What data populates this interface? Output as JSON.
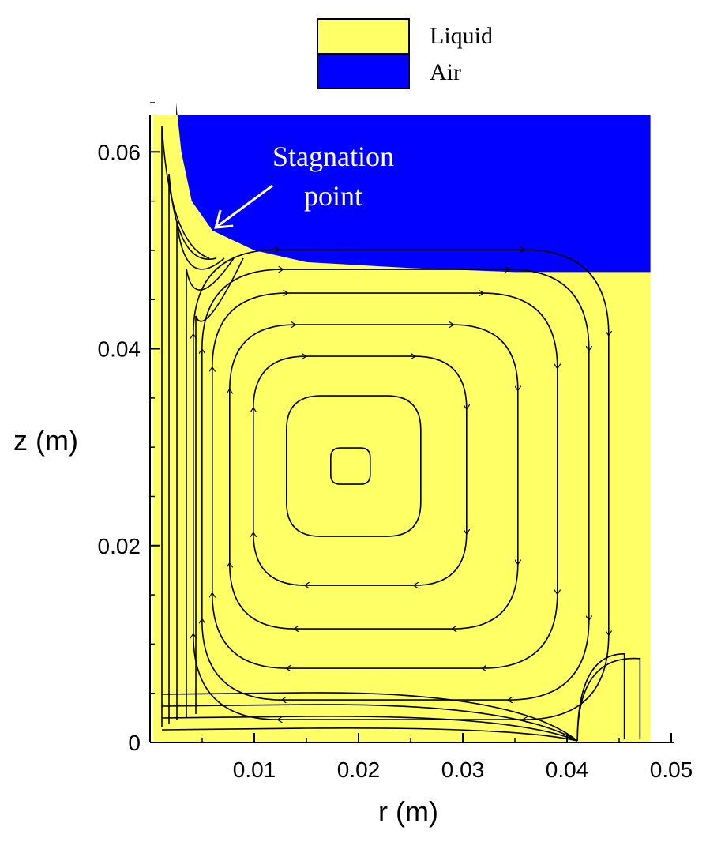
{
  "chart_data": {
    "type": "contour",
    "xlabel": "r (m)",
    "ylabel": "z (m)",
    "xlim": [
      0,
      0.05
    ],
    "ylim": [
      0,
      0.065
    ],
    "x_ticks": [
      "0.01",
      "0.02",
      "0.03",
      "0.04",
      "0.05"
    ],
    "y_ticks": [
      "0",
      "0.02",
      "0.04",
      "0.06"
    ],
    "legend": [
      {
        "label": "Liquid",
        "color": "#ffff66"
      },
      {
        "label": "Air",
        "color": "#0000ff"
      }
    ],
    "annotation": {
      "lines": [
        "Stagnation",
        "point"
      ],
      "target": {
        "r": 0.006,
        "z": 0.052
      }
    },
    "interface_profile": [
      {
        "r": 0.0025,
        "z": 0.065
      },
      {
        "r": 0.003,
        "z": 0.06
      },
      {
        "r": 0.004,
        "z": 0.055
      },
      {
        "r": 0.006,
        "z": 0.052
      },
      {
        "r": 0.01,
        "z": 0.05
      },
      {
        "r": 0.015,
        "z": 0.0488
      },
      {
        "r": 0.025,
        "z": 0.0482
      },
      {
        "r": 0.035,
        "z": 0.0478
      },
      {
        "r": 0.048,
        "z": 0.0478
      }
    ],
    "vortex_center": {
      "r": 0.019,
      "z": 0.028
    },
    "domain_r_max": 0.048
  }
}
